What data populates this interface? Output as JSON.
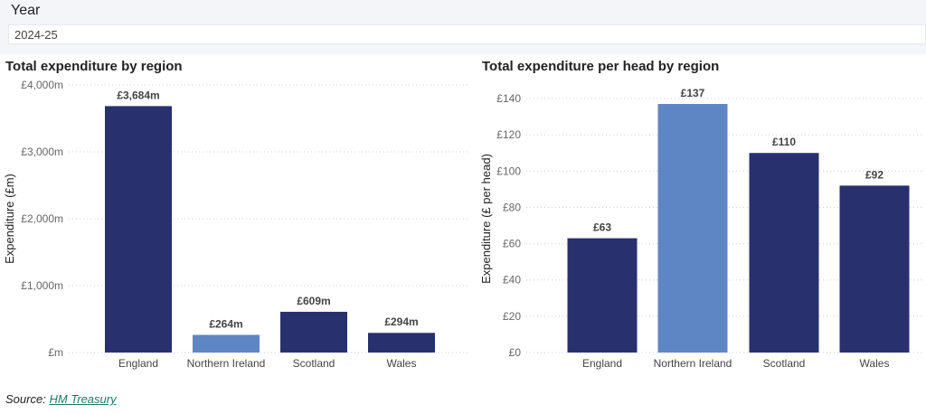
{
  "filter": {
    "label": "Year",
    "value": "2024-25"
  },
  "colors": {
    "dark": "#28316e",
    "highlight": "#5f86c4"
  },
  "source": {
    "label": "Source:",
    "link": "HM Treasury"
  },
  "chart_data": [
    {
      "type": "bar",
      "title": "Total expenditure by region",
      "ylabel": "Expenditure (£m)",
      "xlabel": "",
      "categories": [
        "England",
        "Northern Ireland",
        "Scotland",
        "Wales"
      ],
      "values": [
        3684,
        264,
        609,
        294
      ],
      "data_labels": [
        "£3,684m",
        "£264m",
        "£609m",
        "£294m"
      ],
      "highlight": "Northern Ireland",
      "ylim": [
        0,
        4000
      ],
      "yticks": [
        0,
        1000,
        2000,
        3000,
        4000
      ],
      "ytick_labels": [
        "£m",
        "£1,000m",
        "£2,000m",
        "£3,000m",
        "£4,000m"
      ],
      "grid": true
    },
    {
      "type": "bar",
      "title": "Total expenditure per head by region",
      "ylabel": "Expenditure (£ per head)",
      "xlabel": "",
      "categories": [
        "England",
        "Northern Ireland",
        "Scotland",
        "Wales"
      ],
      "values": [
        63,
        137,
        110,
        92
      ],
      "data_labels": [
        "£63",
        "£137",
        "£110",
        "£92"
      ],
      "highlight": "Northern Ireland",
      "ylim": [
        0,
        140
      ],
      "yticks": [
        0,
        20,
        40,
        60,
        80,
        100,
        120,
        140
      ],
      "ytick_labels": [
        "£0",
        "£20",
        "£40",
        "£60",
        "£80",
        "£100",
        "£120",
        "£140"
      ],
      "grid": true
    }
  ]
}
